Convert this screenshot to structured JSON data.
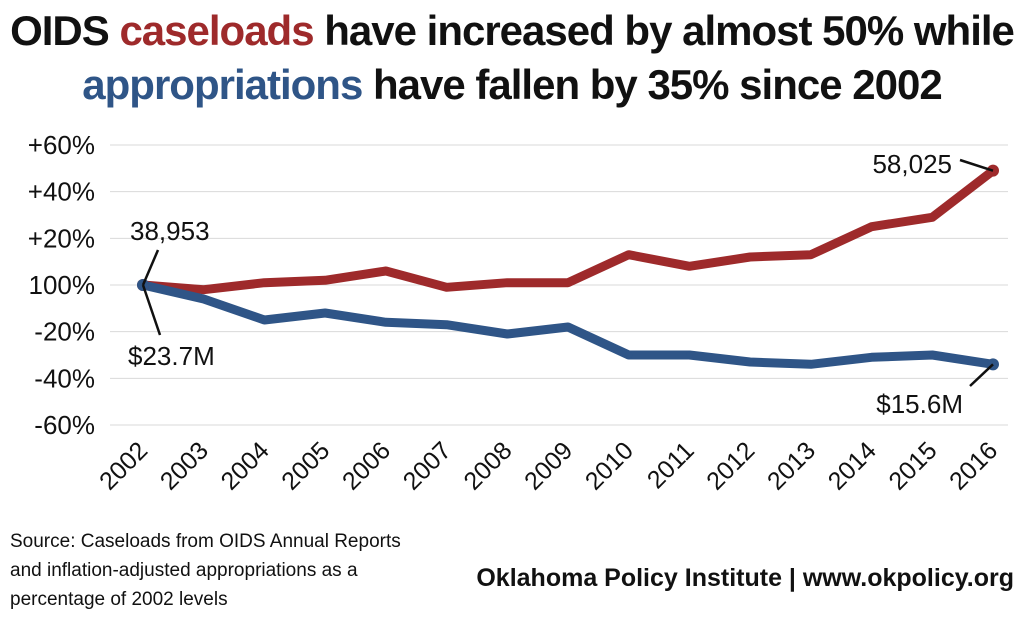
{
  "title": {
    "line1_prefix": "OIDS ",
    "line1_highlight": "caseloads",
    "line1_suffix": " have increased by almost 50% while",
    "line2_highlight": "appropriations",
    "line2_suffix": " have fallen by 35% since 2002"
  },
  "colors": {
    "caseloads": "#9e2a2b",
    "appropriations": "#2f5587",
    "grid": "#d9d9d9"
  },
  "chart_data": {
    "type": "line",
    "categories": [
      "2002",
      "2003",
      "2004",
      "2005",
      "2006",
      "2007",
      "2008",
      "2009",
      "2010",
      "2011",
      "2012",
      "2013",
      "2014",
      "2015",
      "2016"
    ],
    "ylim": [
      -60,
      60
    ],
    "yticks": [
      60,
      40,
      20,
      0,
      -20,
      -40,
      -60
    ],
    "ytick_labels": [
      "+60%",
      "+40%",
      "+20%",
      "100%",
      "-20%",
      "-40%",
      "-60%"
    ],
    "grid": true,
    "series": [
      {
        "name": "caseloads",
        "color": "#9e2a2b",
        "values": [
          0,
          -2,
          1,
          2,
          6,
          -1,
          1,
          1,
          13,
          8,
          12,
          13,
          25,
          29,
          49
        ]
      },
      {
        "name": "appropriations",
        "color": "#2f5587",
        "values": [
          0,
          -6,
          -15,
          -12,
          -16,
          -17,
          -21,
          -18,
          -30,
          -30,
          -33,
          -34,
          -31,
          -30,
          -34
        ]
      }
    ],
    "annotations": [
      {
        "text": "38,953",
        "series": "caseloads",
        "category": "2002"
      },
      {
        "text": "58,025",
        "series": "caseloads",
        "category": "2016"
      },
      {
        "text": "$23.7M",
        "series": "appropriations",
        "category": "2002"
      },
      {
        "text": "$15.6M",
        "series": "appropriations",
        "category": "2016"
      }
    ]
  },
  "footer": {
    "source_lines": [
      "Source: Caseloads from OIDS Annual Reports",
      "and inflation-adjusted appropriations as a",
      "percentage of 2002 levels"
    ],
    "brand": "Oklahoma Policy Institute | www.okpolicy.org"
  }
}
